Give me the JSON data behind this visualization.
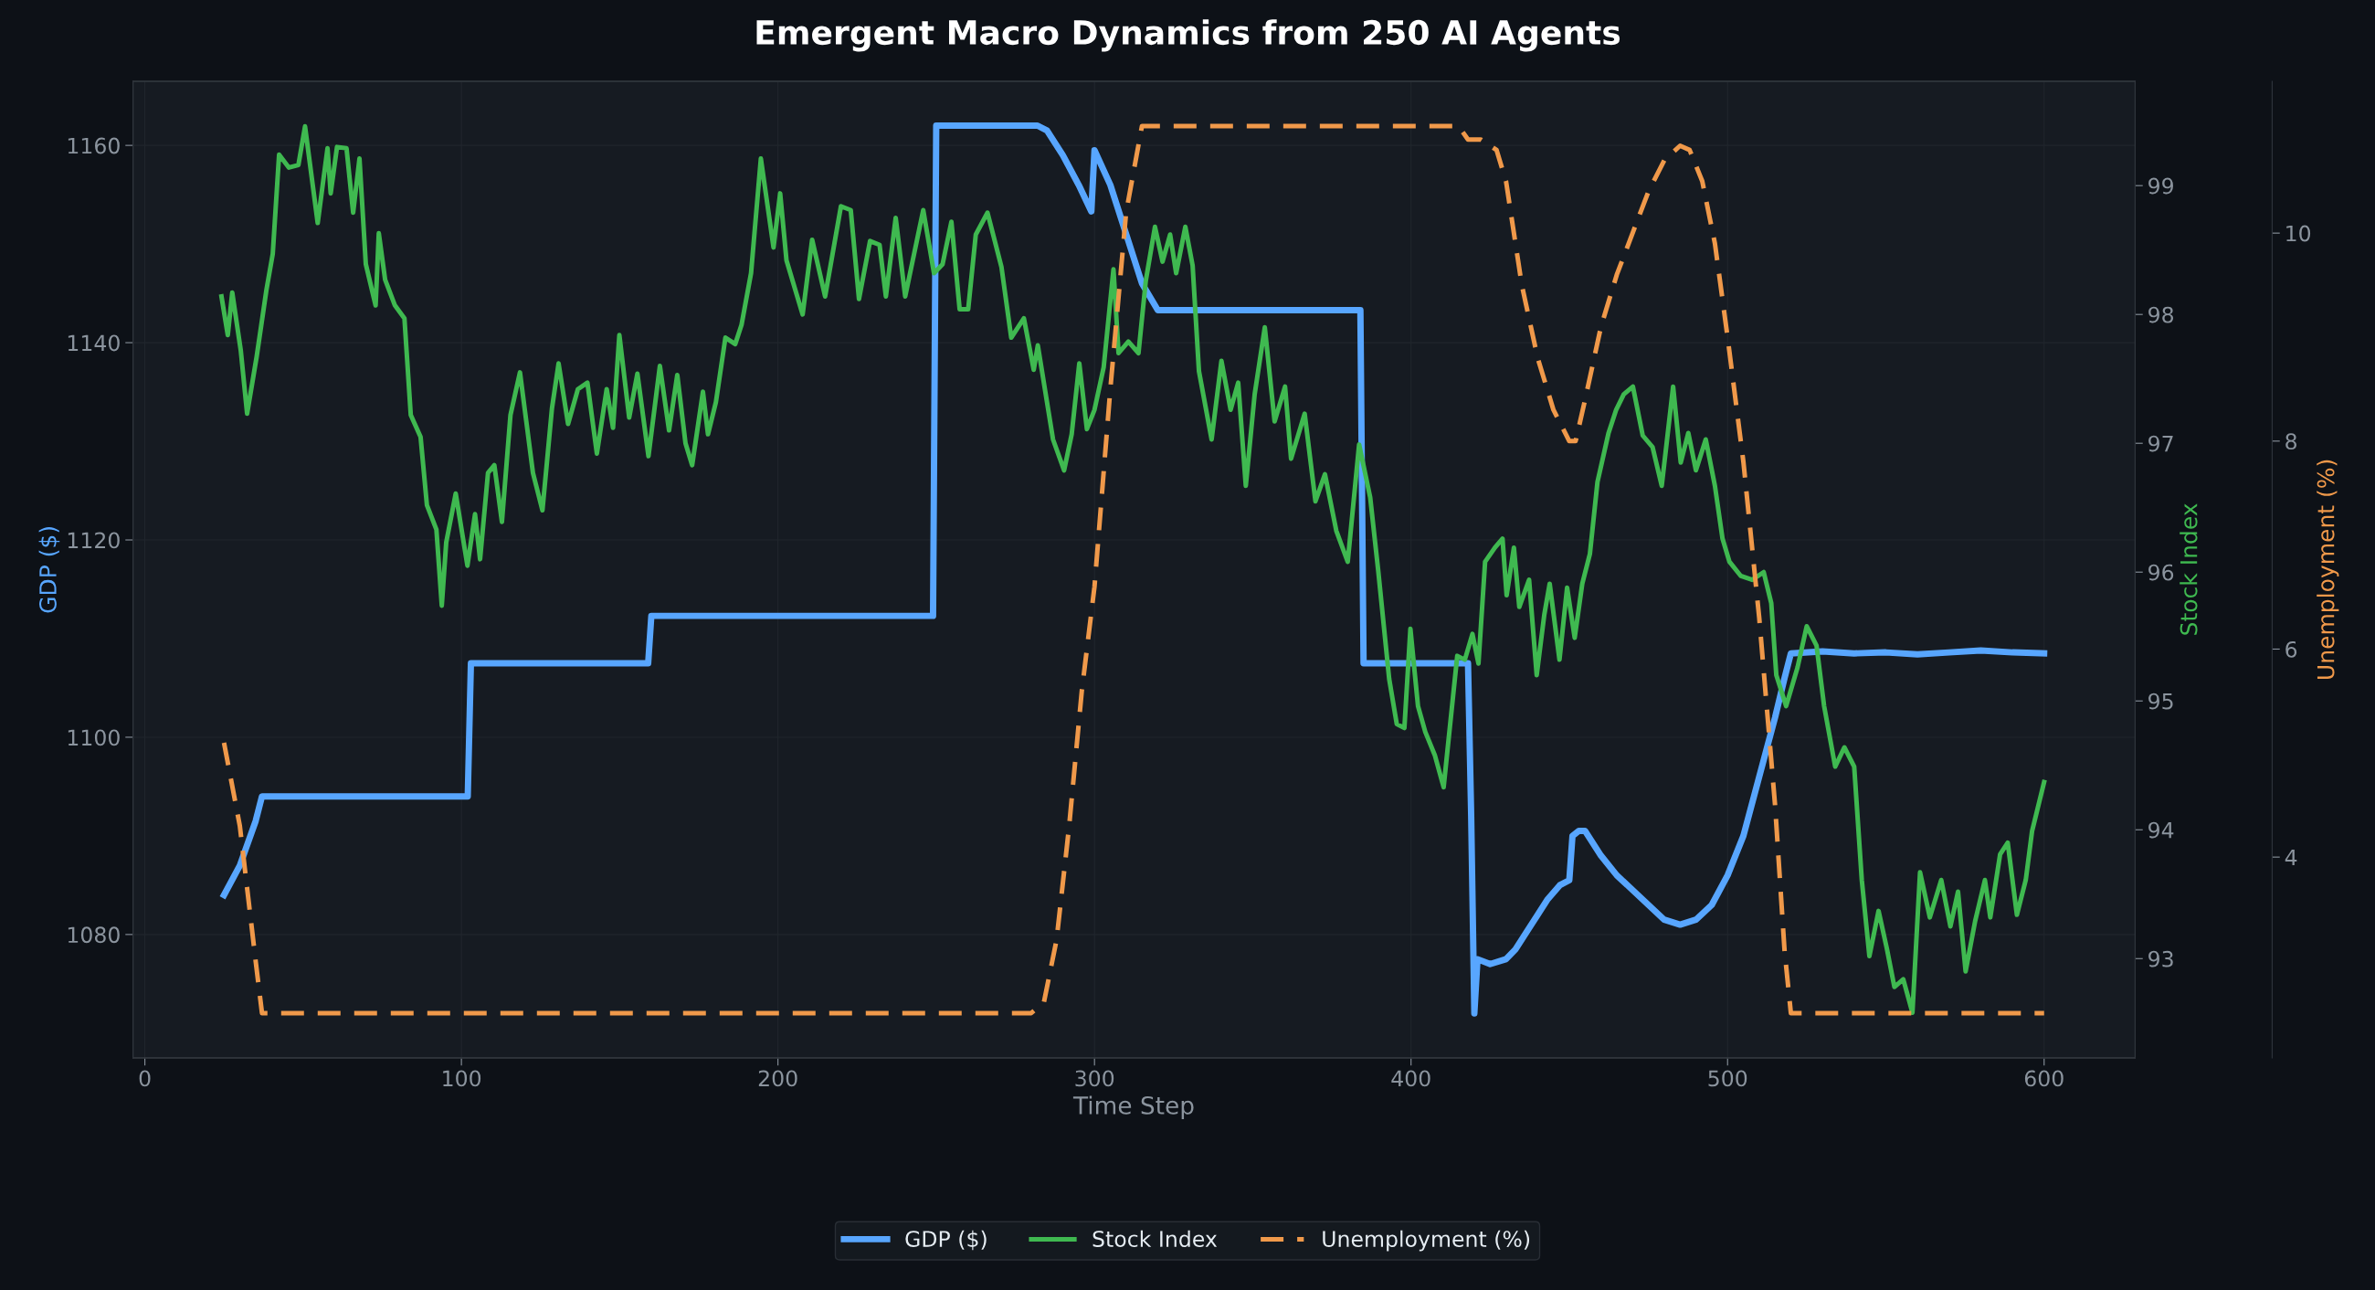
{
  "chart_data": {
    "type": "line",
    "title": "Emergent Macro Dynamics from 250 AI Agents",
    "xlabel": "Time Step",
    "ylabel": "GDP ($)",
    "y2label": "Stock Index",
    "y3label": "Unemployment (%)",
    "xlim": [
      -3.75,
      628.75
    ],
    "xticks": [
      0,
      100,
      200,
      300,
      400,
      500,
      600
    ],
    "ylim": [
      1067.5,
      1166.5
    ],
    "yticks": [
      1080,
      1100,
      1120,
      1140,
      1160
    ],
    "y2lim": [
      92.23,
      99.81
    ],
    "y2ticks": [
      93,
      94,
      95,
      96,
      97,
      98,
      99
    ],
    "y3lim": [
      2.07,
      11.46
    ],
    "y3ticks": [
      4,
      6,
      8,
      10
    ],
    "grid": true,
    "legend": "bottom",
    "marker": "none",
    "series": [
      {
        "name": "GDP ($)",
        "color": "#58a6ff",
        "axis": "y",
        "line_style": "solid",
        "x": [
          25,
          30,
          35,
          37,
          102,
          103,
          159,
          160,
          249,
          250,
          282,
          285,
          290,
          295,
          299,
          300,
          305,
          310,
          315,
          320,
          384,
          385,
          418,
          419,
          420,
          421,
          425,
          430,
          433,
          436,
          440,
          443,
          447,
          450,
          451,
          453,
          455,
          460,
          465,
          470,
          475,
          480,
          485,
          490,
          495,
          500,
          505,
          510,
          515,
          518,
          520,
          530,
          540,
          550,
          560,
          570,
          580,
          590,
          600
        ],
        "values": [
          1084,
          1087,
          1091.5,
          1094,
          1094,
          1107.5,
          1107.5,
          1112.3,
          1112.3,
          1162,
          1162,
          1161.5,
          1159,
          1156,
          1153.3,
          1159.5,
          1156,
          1151,
          1146,
          1143.3,
          1143.3,
          1107.5,
          1107.5,
          1092,
          1072,
          1077.5,
          1077,
          1077.5,
          1078.5,
          1080,
          1082,
          1083.5,
          1085,
          1085.5,
          1090,
          1090.5,
          1090.5,
          1088,
          1086,
          1084.5,
          1083,
          1081.5,
          1081,
          1081.5,
          1083,
          1086,
          1090,
          1096,
          1102,
          1106,
          1108.5,
          1108.7,
          1108.5,
          1108.6,
          1108.4,
          1108.6,
          1108.8,
          1108.6,
          1108.5
        ]
      },
      {
        "name": "Stock Index",
        "color": "#3fb950",
        "axis": "y2",
        "line_style": "solid",
        "x": [
          24.2,
          26.2,
          27.6,
          30.3,
          32.3,
          35.3,
          38.4,
          40.4,
          42.4,
          45.5,
          48.5,
          50.6,
          54.6,
          57.7,
          58.7,
          60.7,
          63.7,
          65.8,
          67.8,
          69.8,
          72.9,
          73.9,
          75.9,
          79,
          82,
          84,
          87.1,
          89.1,
          92.1,
          93.8,
          95.2,
          98.2,
          101.9,
          104.3,
          105.9,
          108.4,
          110.4,
          112.8,
          115.5,
          118.5,
          120.5,
          122.6,
          125.6,
          128.6,
          130.7,
          133.7,
          136.8,
          139.8,
          142.8,
          145.9,
          147.9,
          149.9,
          153,
          155.6,
          159.1,
          162.7,
          165.6,
          168.2,
          170.8,
          172.9,
          176.3,
          177.9,
          180.4,
          183.4,
          186.5,
          188.5,
          191.5,
          194.6,
          198.6,
          200.7,
          202.7,
          207.8,
          210.8,
          214.9,
          219.9,
          223,
          225.6,
          229.1,
          232.1,
          234.1,
          237.2,
          240.2,
          245.9,
          249.3,
          252,
          254.8,
          257.4,
          260.1,
          262.5,
          266.2,
          270.6,
          273.7,
          277.7,
          280.8,
          282.1,
          286.9,
          290.4,
          292.8,
          295.2,
          297.6,
          300,
          302.9,
          306,
          307.6,
          310.7,
          313.9,
          316.2,
          319.1,
          321.5,
          323.9,
          325.8,
          328.7,
          331,
          333,
          337,
          340.1,
          343,
          345.4,
          347.8,
          350.6,
          353.8,
          356.9,
          360.2,
          362.1,
          366.4,
          369.8,
          372.8,
          376.4,
          380,
          383.6,
          387.1,
          389.6,
          393.1,
          395.5,
          397.9,
          399.8,
          402.2,
          404.5,
          407.5,
          410.3,
          414.6,
          417,
          419.4,
          421.3,
          423.4,
          426.5,
          428.9,
          430.2,
          432.5,
          434.2,
          437.3,
          439.7,
          442.1,
          443.8,
          446.9,
          449.3,
          451.7,
          454.1,
          456.5,
          458.9,
          462.4,
          464.8,
          467.2,
          470.1,
          473.2,
          476.3,
          479.2,
          482.8,
          485.2,
          487.6,
          490,
          493.1,
          496,
          498.4,
          500.6,
          504.2,
          507.8,
          511.4,
          513.8,
          515.4,
          518.5,
          522.1,
          525,
          528.1,
          530.5,
          534,
          536.9,
          540,
          542.4,
          544.8,
          547.7,
          550.3,
          552.7,
          555.5,
          558.4,
          560.8,
          563.9,
          567.5,
          570.4,
          572.8,
          575.2,
          578.2,
          581.3,
          583,
          586.1,
          588.5,
          591.4,
          594.2,
          596.2,
          600
        ],
        "values": [
          98.14,
          97.84,
          98.17,
          97.72,
          97.23,
          97.67,
          98.19,
          98.47,
          99.24,
          99.14,
          99.16,
          99.46,
          98.71,
          99.29,
          98.94,
          99.3,
          99.29,
          98.79,
          99.21,
          98.39,
          98.07,
          98.63,
          98.27,
          98.07,
          97.97,
          97.22,
          97.05,
          96.52,
          96.33,
          95.74,
          96.23,
          96.61,
          96.05,
          96.45,
          96.1,
          96.77,
          96.83,
          96.39,
          97.22,
          97.55,
          97.17,
          96.77,
          96.48,
          97.27,
          97.62,
          97.15,
          97.42,
          97.47,
          96.92,
          97.42,
          97.12,
          97.84,
          97.2,
          97.54,
          96.9,
          97.6,
          97.1,
          97.53,
          97.0,
          96.83,
          97.4,
          97.07,
          97.32,
          97.82,
          97.77,
          97.92,
          98.32,
          99.21,
          98.52,
          98.94,
          98.42,
          98.0,
          98.58,
          98.14,
          98.84,
          98.81,
          98.12,
          98.57,
          98.54,
          98.14,
          98.75,
          98.14,
          98.81,
          98.32,
          98.39,
          98.72,
          98.04,
          98.04,
          98.62,
          98.79,
          98.37,
          97.82,
          97.97,
          97.57,
          97.76,
          97.03,
          96.79,
          97.07,
          97.62,
          97.11,
          97.26,
          97.59,
          98.35,
          97.7,
          97.79,
          97.7,
          98.26,
          98.68,
          98.41,
          98.62,
          98.32,
          98.68,
          98.38,
          97.56,
          97.03,
          97.64,
          97.26,
          97.47,
          96.67,
          97.38,
          97.9,
          97.17,
          97.44,
          96.88,
          97.23,
          96.55,
          96.76,
          96.32,
          96.08,
          96.99,
          96.58,
          96.02,
          95.17,
          94.82,
          94.79,
          95.56,
          94.96,
          94.76,
          94.58,
          94.33,
          95.35,
          95.32,
          95.52,
          95.29,
          96.08,
          96.19,
          96.26,
          95.82,
          96.19,
          95.73,
          95.94,
          95.2,
          95.67,
          95.91,
          95.32,
          95.88,
          95.49,
          95.91,
          96.14,
          96.7,
          97.08,
          97.26,
          97.38,
          97.44,
          97.06,
          96.97,
          96.67,
          97.44,
          96.85,
          97.08,
          96.79,
          97.03,
          96.67,
          96.26,
          96.08,
          95.97,
          95.94,
          96.0,
          95.76,
          95.2,
          94.96,
          95.26,
          95.58,
          95.43,
          94.96,
          94.49,
          94.64,
          94.49,
          93.61,
          93.02,
          93.37,
          93.08,
          92.78,
          92.84,
          92.58,
          93.67,
          93.32,
          93.61,
          93.25,
          93.52,
          92.9,
          93.29,
          93.61,
          93.32,
          93.81,
          93.9,
          93.34,
          93.61,
          93.99,
          94.37
        ]
      },
      {
        "name": "Unemployment (%)",
        "color": "#f0994a",
        "axis": "y3",
        "line_style": "dashed",
        "x": [
          25,
          30,
          35,
          37,
          280,
          284,
          288,
          292,
          296,
          300,
          305,
          310,
          315,
          415,
          418,
          422,
          427,
          430,
          435,
          440,
          445,
          450,
          452,
          455,
          460,
          465,
          470,
          475,
          480,
          485,
          488,
          492,
          496,
          500,
          505,
          510,
          515,
          518,
          520,
          600
        ],
        "values": [
          5.1,
          4.3,
          3.0,
          2.5,
          2.5,
          2.6,
          3.2,
          4.3,
          5.6,
          6.6,
          8.5,
          10.2,
          11.03,
          11.03,
          10.9,
          10.9,
          10.8,
          10.5,
          9.5,
          8.8,
          8.3,
          8.0,
          8.0,
          8.4,
          9.1,
          9.6,
          10.0,
          10.4,
          10.7,
          10.84,
          10.8,
          10.5,
          9.9,
          9.0,
          7.8,
          6.3,
          4.5,
          3.1,
          2.5,
          2.5
        ]
      }
    ]
  }
}
